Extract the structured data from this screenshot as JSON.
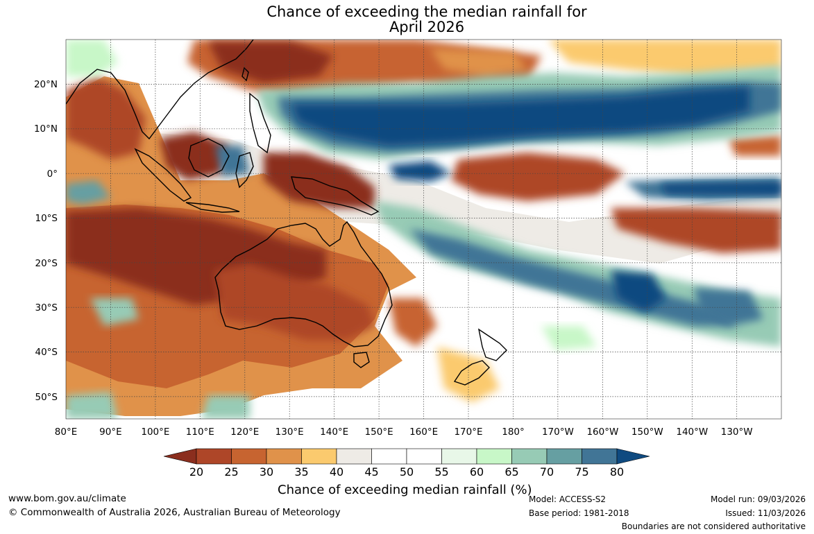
{
  "title": {
    "line1": "Chance of exceeding the median rainfall for",
    "line2": "April 2026"
  },
  "axes": {
    "lat_labels": [
      "20°N",
      "10°N",
      "0°",
      "10°S",
      "20°S",
      "30°S",
      "40°S",
      "50°S"
    ],
    "lon_labels": [
      "80°E",
      "90°E",
      "100°E",
      "110°E",
      "120°E",
      "130°E",
      "140°E",
      "150°E",
      "160°E",
      "170°E",
      "180°",
      "170°W",
      "160°W",
      "150°W",
      "140°W",
      "130°W"
    ],
    "lon_range_deg_east": [
      80,
      240
    ],
    "lat_range": [
      -55,
      30
    ]
  },
  "colorbar": {
    "ticks": [
      "20",
      "25",
      "30",
      "35",
      "40",
      "45",
      "50",
      "55",
      "60",
      "65",
      "70",
      "75",
      "80"
    ],
    "colors": [
      "#8b2e1e",
      "#ae4628",
      "#c76430",
      "#e0924a",
      "#fbca6e",
      "#eeebe6",
      "#ffffff",
      "#ffffff",
      "#e8f7e8",
      "#c8f7c8",
      "#97cbb5",
      "#669fa2",
      "#417596",
      "#0f4a80"
    ],
    "title": "Chance of exceeding median rainfall (%)"
  },
  "footer": {
    "url": "www.bom.gov.au/climate",
    "copyright": "© Commonwealth of Australia 2026, Australian Bureau of Meteorology",
    "model": "Model: ACCESS-S2",
    "base_period": "Base period: 1981-2018",
    "model_run": "Model run: 09/03/2026",
    "issued": "Issued: 11/03/2026",
    "disclaimer": "Boundaries are not considered authoritative"
  }
}
